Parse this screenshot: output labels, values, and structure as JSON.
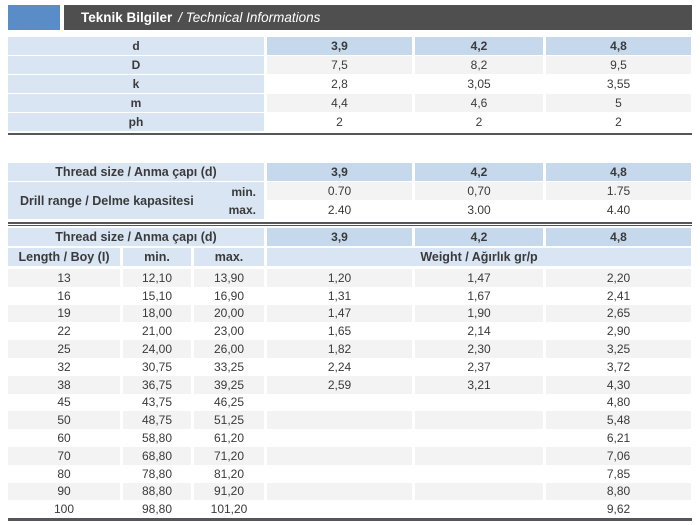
{
  "title": {
    "main": "Teknik Bilgiler",
    "sub": "/ Technical Informations"
  },
  "colors": {
    "accent": "#5A8DC7",
    "bar": "#4F4F4F",
    "label_blue": "#D9E5F3",
    "header_blue": "#C5D8EC",
    "row_alt": "#F3F3F4",
    "text": "#3A3A3A",
    "rule": "#55565A"
  },
  "table1": {
    "header_row": {
      "label": "d",
      "v0": "3,9",
      "v1": "4,2",
      "v2": "4,8"
    },
    "rows": [
      {
        "label": "D",
        "v0": "7,5",
        "v1": "8,2",
        "v2": "9,5"
      },
      {
        "label": "k",
        "v0": "2,8",
        "v1": "3,05",
        "v2": "3,55"
      },
      {
        "label": "m",
        "v0": "4,4",
        "v1": "4,6",
        "v2": "5"
      },
      {
        "label": "ph",
        "v0": "2",
        "v1": "2",
        "v2": "2"
      }
    ]
  },
  "table2": {
    "header_label": "Thread size / Anma çapı (d)",
    "header_values": [
      "3,9",
      "4,2",
      "4,8"
    ],
    "row_label": "Drill range / Delme kapasitesi",
    "min_label": "min.",
    "max_label": "max.",
    "min_values": [
      "0.70",
      "0,70",
      "1.75"
    ],
    "max_values": [
      "2.40",
      "3.00",
      "4.40"
    ]
  },
  "table3": {
    "header_label": "Thread size / Anma çapı (d)",
    "header_values": [
      "3,9",
      "4,2",
      "4,8"
    ],
    "col_length": "Length / Boy (I)",
    "col_min": "min.",
    "col_max": "max.",
    "col_weight": "Weight / Ağırlık gr/p",
    "rows": [
      {
        "len": "13",
        "min": "12,10",
        "max": "13,90",
        "w0": "1,20",
        "w1": "1,47",
        "w2": "2,20"
      },
      {
        "len": "16",
        "min": "15,10",
        "max": "16,90",
        "w0": "1,31",
        "w1": "1,67",
        "w2": "2,41"
      },
      {
        "len": "19",
        "min": "18,00",
        "max": "20,00",
        "w0": "1,47",
        "w1": "1,90",
        "w2": "2,65"
      },
      {
        "len": "22",
        "min": "21,00",
        "max": "23,00",
        "w0": "1,65",
        "w1": "2,14",
        "w2": "2,90"
      },
      {
        "len": "25",
        "min": "24,00",
        "max": "26,00",
        "w0": "1,82",
        "w1": "2,30",
        "w2": "3,25"
      },
      {
        "len": "32",
        "min": "30,75",
        "max": "33,25",
        "w0": "2,24",
        "w1": "2,37",
        "w2": "3,72"
      },
      {
        "len": "38",
        "min": "36,75",
        "max": "39,25",
        "w0": "2,59",
        "w1": "3,21",
        "w2": "4,30"
      },
      {
        "len": "45",
        "min": "43,75",
        "max": "46,25",
        "w0": "",
        "w1": "",
        "w2": "4,80"
      },
      {
        "len": "50",
        "min": "48,75",
        "max": "51,25",
        "w0": "",
        "w1": "",
        "w2": "5,48"
      },
      {
        "len": "60",
        "min": "58,80",
        "max": "61,20",
        "w0": "",
        "w1": "",
        "w2": "6,21"
      },
      {
        "len": "70",
        "min": "68,80",
        "max": "71,20",
        "w0": "",
        "w1": "",
        "w2": "7,06"
      },
      {
        "len": "80",
        "min": "78,80",
        "max": "81,20",
        "w0": "",
        "w1": "",
        "w2": "7,85"
      },
      {
        "len": "90",
        "min": "88,80",
        "max": "91,20",
        "w0": "",
        "w1": "",
        "w2": "8,80"
      },
      {
        "len": "100",
        "min": "98,80",
        "max": "101,20",
        "w0": "",
        "w1": "",
        "w2": "9,62"
      }
    ]
  }
}
